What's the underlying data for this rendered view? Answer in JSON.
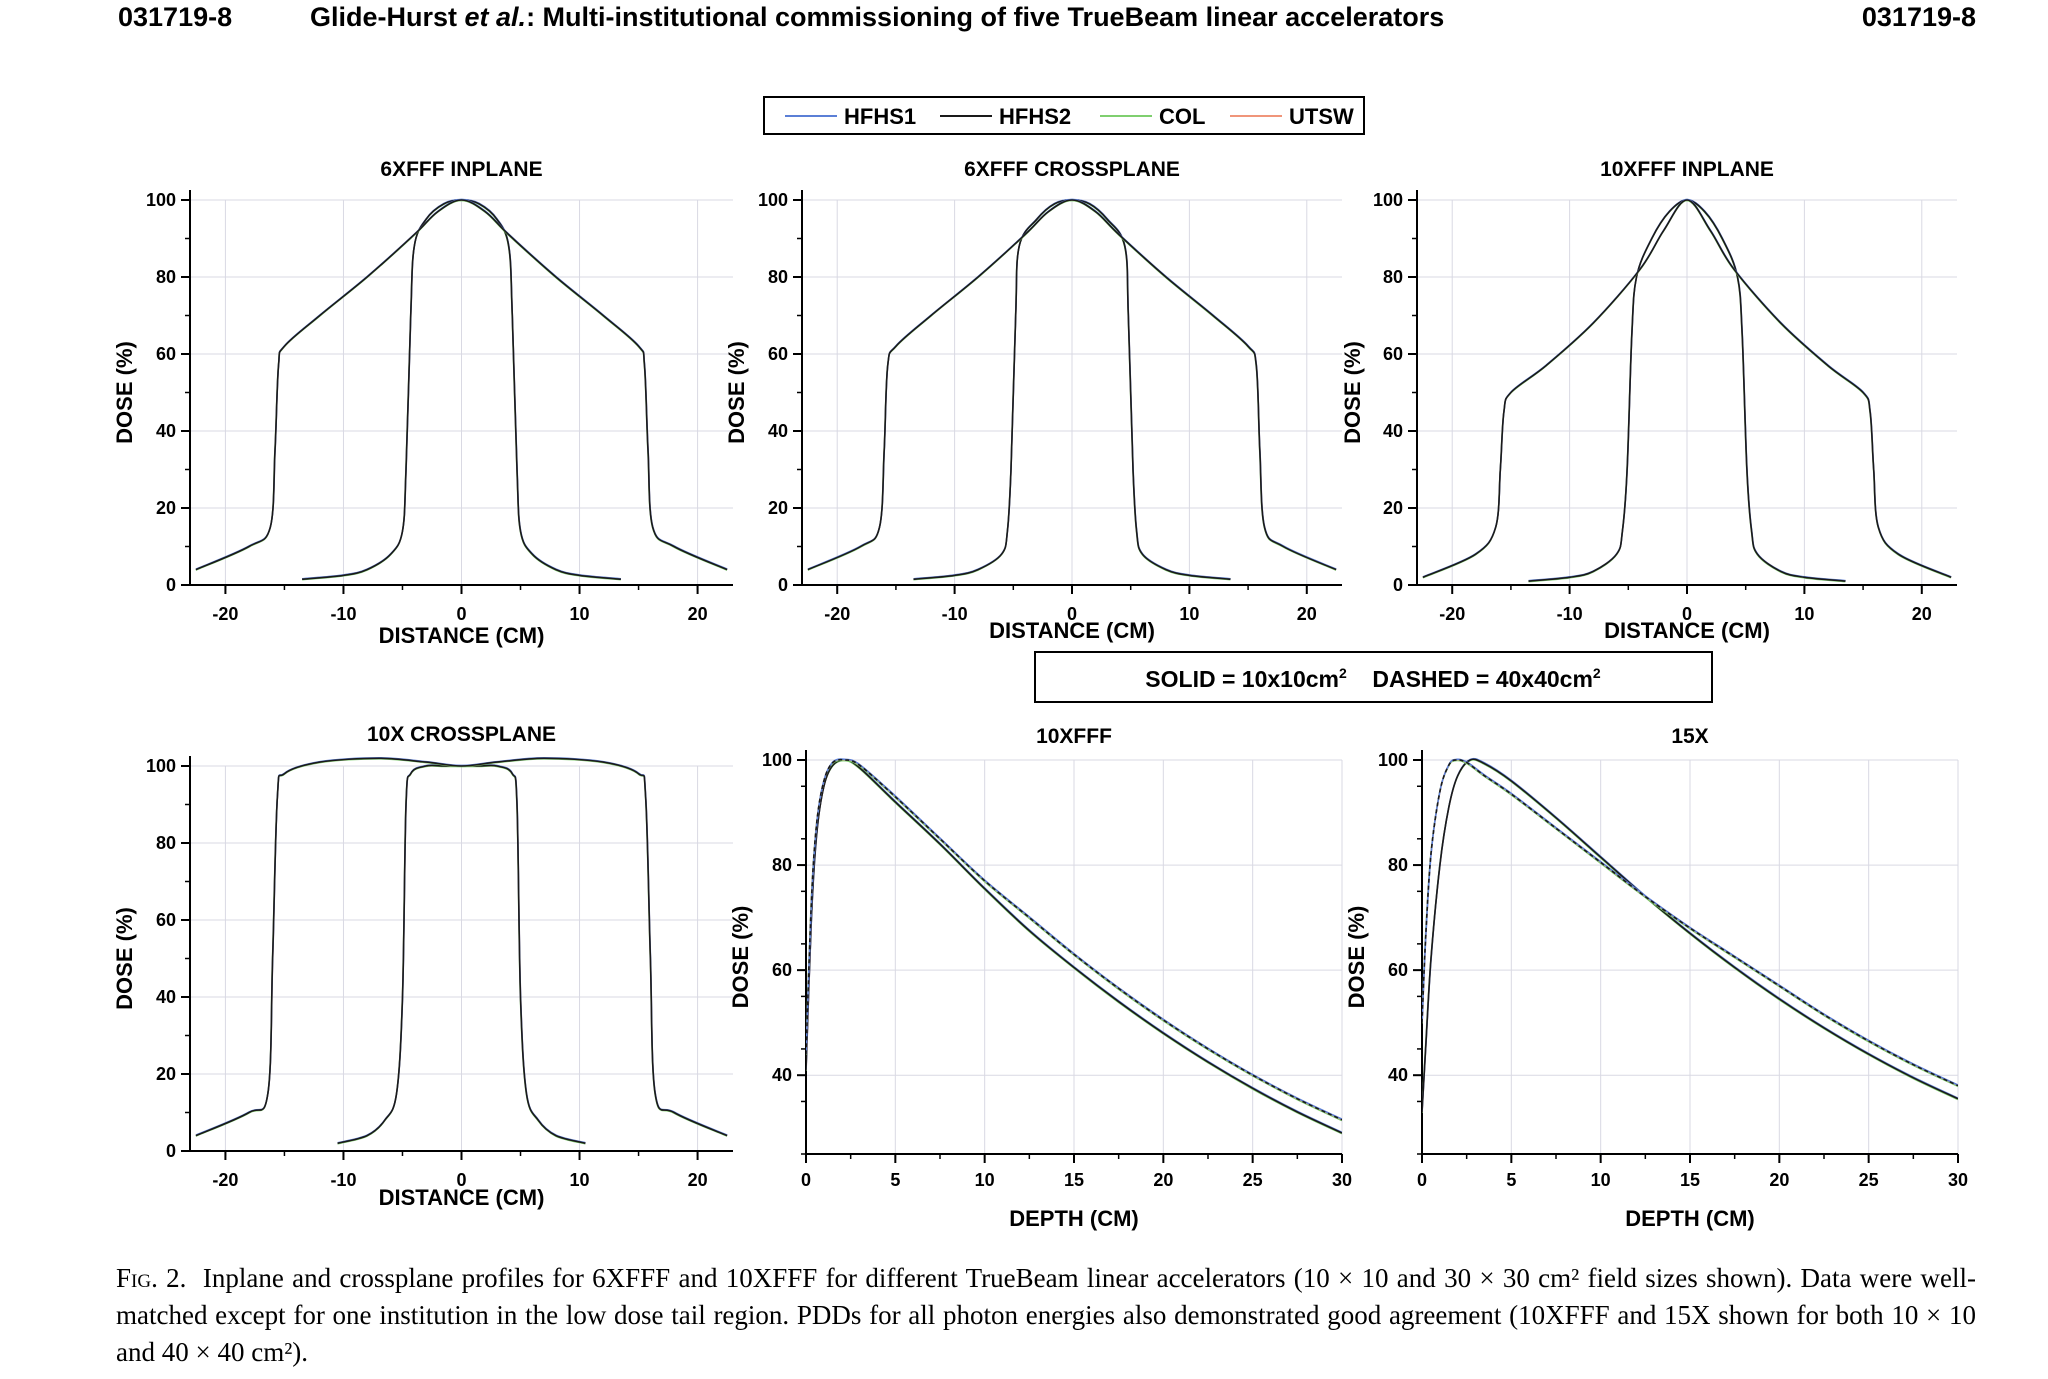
{
  "header": {
    "page_left": "031719-8",
    "title_author": "Glide-Hurst",
    "title_etal": "et al.",
    "title_rest": ": Multi-institutional commissioning of five TrueBeam linear accelerators",
    "page_right": "031719-8"
  },
  "legend": {
    "entries": [
      {
        "name": "HFHS1",
        "color": "#5b7fd6"
      },
      {
        "name": "HFHS2",
        "color": "#1a1a1a"
      },
      {
        "name": "COL",
        "color": "#7fcf6f"
      },
      {
        "name": "UTSW",
        "color": "#f0957a"
      }
    ]
  },
  "field_size_legend": {
    "solid_text": "SOLID = 10x10cm",
    "solid_sup": "2",
    "dashed_text": "DASHED = 40x40cm",
    "dashed_sup": "2"
  },
  "chart_data": [
    {
      "type": "line",
      "title": "6XFFF INPLANE",
      "xlabel": "DISTANCE (CM)",
      "ylabel": "DOSE (%)",
      "xlim": [
        -23,
        23
      ],
      "ylim": [
        0,
        100
      ],
      "xticks": [
        -20,
        -10,
        0,
        10,
        20
      ],
      "yticks": [
        0,
        20,
        40,
        60,
        80,
        100
      ],
      "series": [
        {
          "field": "10x10",
          "x": [
            -13.5,
            -10,
            -8,
            -6,
            -5,
            -4.7,
            -4.3,
            -4,
            -3,
            -1.5,
            0,
            1.5,
            3,
            4,
            4.3,
            4.7,
            5,
            6,
            8,
            10,
            13.5
          ],
          "y": [
            1.5,
            2.5,
            4,
            8,
            14,
            30,
            70,
            88,
            95,
            99,
            100,
            99,
            95,
            88,
            70,
            30,
            14,
            8,
            4,
            2.5,
            1.5
          ]
        },
        {
          "field": "30x30",
          "x": [
            -22.5,
            -18,
            -16.2,
            -15.8,
            -15.5,
            -15,
            -12,
            -8,
            -4,
            -2,
            0,
            2,
            4,
            8,
            12,
            15,
            15.5,
            15.8,
            16.2,
            18,
            22.5
          ],
          "y": [
            4,
            10,
            15,
            35,
            57,
            62,
            70,
            80,
            91,
            97,
            100,
            97,
            91,
            80,
            70,
            62,
            57,
            35,
            15,
            10,
            4
          ]
        }
      ]
    },
    {
      "type": "line",
      "title": "6XFFF CROSSPLANE",
      "xlabel": "DISTANCE (CM)",
      "ylabel": "DOSE (%)",
      "xlim": [
        -23,
        23
      ],
      "ylim": [
        0,
        100
      ],
      "xticks": [
        -20,
        -10,
        0,
        10,
        20
      ],
      "yticks": [
        0,
        20,
        40,
        60,
        80,
        100
      ],
      "series": [
        {
          "field": "10x10",
          "x": [
            -13.5,
            -10,
            -8,
            -6,
            -5.5,
            -5.2,
            -4.8,
            -4.5,
            -3,
            -1.5,
            0,
            1.5,
            3,
            4.5,
            4.8,
            5.2,
            5.5,
            6,
            8,
            10,
            13.5
          ],
          "y": [
            1.5,
            2.5,
            4,
            8,
            14,
            30,
            70,
            88,
            95,
            99,
            100,
            99,
            95,
            88,
            70,
            30,
            14,
            8,
            4,
            2.5,
            1.5
          ]
        },
        {
          "field": "30x30",
          "x": [
            -22.5,
            -18,
            -16.4,
            -16,
            -15.7,
            -15,
            -12,
            -8,
            -4,
            -2,
            0,
            2,
            4,
            8,
            12,
            15,
            15.7,
            16,
            16.4,
            18,
            22.5
          ],
          "y": [
            4,
            10,
            15,
            35,
            57,
            62,
            70,
            80,
            91,
            97,
            100,
            97,
            91,
            80,
            70,
            62,
            57,
            35,
            15,
            10,
            4
          ]
        }
      ]
    },
    {
      "type": "line",
      "title": "10XFFF INPLANE",
      "xlabel": "DISTANCE (CM)",
      "ylabel": "DOSE (%)",
      "xlim": [
        -23,
        23
      ],
      "ylim": [
        0,
        100
      ],
      "xticks": [
        -20,
        -10,
        0,
        10,
        20
      ],
      "yticks": [
        0,
        20,
        40,
        60,
        80,
        100
      ],
      "series": [
        {
          "field": "10x10",
          "x": [
            -13.5,
            -10,
            -8,
            -6,
            -5.5,
            -5.1,
            -4.7,
            -4.3,
            -3,
            -1.5,
            0,
            1.5,
            3,
            4.3,
            4.7,
            5.1,
            5.5,
            6,
            8,
            10,
            13.5
          ],
          "y": [
            1,
            2,
            3.5,
            8,
            14,
            30,
            65,
            80,
            90,
            97,
            100,
            97,
            90,
            80,
            65,
            30,
            14,
            8,
            3.5,
            2,
            1
          ]
        },
        {
          "field": "30x30",
          "x": [
            -22.5,
            -18,
            -16.3,
            -15.9,
            -15.6,
            -15,
            -12,
            -8,
            -4,
            -2,
            0,
            2,
            4,
            8,
            12,
            15,
            15.6,
            15.9,
            16.3,
            18,
            22.5
          ],
          "y": [
            2,
            8,
            15,
            30,
            45,
            50,
            57,
            68,
            82,
            92,
            100,
            92,
            82,
            68,
            57,
            50,
            45,
            30,
            15,
            8,
            2
          ]
        }
      ]
    },
    {
      "type": "line",
      "title": "10X CROSSPLANE",
      "xlabel": "DISTANCE (CM)",
      "ylabel": "DOSE (%)",
      "xlim": [
        -23,
        23
      ],
      "ylim": [
        0,
        100
      ],
      "xticks": [
        -20,
        -10,
        0,
        10,
        20
      ],
      "yticks": [
        0,
        20,
        40,
        60,
        80,
        100
      ],
      "series": [
        {
          "field": "10x10",
          "x": [
            -10.5,
            -8,
            -6.5,
            -5.5,
            -5,
            -4.7,
            -4.3,
            -3,
            -1.5,
            0,
            1.5,
            3,
            4.3,
            4.7,
            5,
            5.5,
            6.5,
            8,
            10.5
          ],
          "y": [
            2,
            4,
            8,
            15,
            40,
            90,
            98,
            100,
            100,
            100,
            100,
            100,
            98,
            90,
            40,
            15,
            8,
            4,
            2
          ]
        },
        {
          "field": "30x30",
          "x": [
            -22.5,
            -18,
            -16.4,
            -16,
            -15.6,
            -15,
            -12,
            -7,
            -3,
            0,
            3,
            7,
            12,
            15,
            15.6,
            16,
            16.4,
            18,
            22.5
          ],
          "y": [
            4,
            10,
            15,
            50,
            92,
            98,
            101,
            102,
            101,
            100,
            101,
            102,
            101,
            98,
            92,
            50,
            15,
            10,
            4
          ]
        }
      ]
    },
    {
      "type": "line",
      "title": "10XFFF",
      "xlabel": "DEPTH (CM)",
      "ylabel": "DOSE (%)",
      "xlim": [
        0,
        30
      ],
      "ylim": [
        25,
        100
      ],
      "xticks": [
        0,
        5,
        10,
        15,
        20,
        25,
        30
      ],
      "yticks": [
        40,
        60,
        80,
        100
      ],
      "series": [
        {
          "field": "10x10",
          "x": [
            0,
            0.3,
            0.6,
            1,
            1.5,
            2.2,
            3,
            5,
            7.5,
            10,
            12.5,
            15,
            17.5,
            20,
            22.5,
            25,
            27.5,
            30
          ],
          "y": [
            41,
            70,
            86,
            95,
            99,
            100,
            98.5,
            92,
            84,
            75.5,
            67.5,
            60.5,
            54,
            48,
            42.5,
            37.5,
            33,
            29
          ]
        },
        {
          "field": "40x40",
          "x": [
            0,
            0.3,
            0.6,
            1,
            1.5,
            2.2,
            3,
            5,
            7.5,
            10,
            12.5,
            15,
            17.5,
            20,
            22.5,
            25,
            27.5,
            30
          ],
          "y": [
            44,
            73,
            88,
            96,
            99.5,
            100,
            99,
            93,
            85,
            77,
            70,
            63,
            56.5,
            50.5,
            45,
            40,
            35.5,
            31.5
          ]
        }
      ]
    },
    {
      "type": "line",
      "title": "15X",
      "xlabel": "DEPTH (CM)",
      "ylabel": "DOSE (%)",
      "xlim": [
        0,
        30
      ],
      "ylim": [
        25,
        100
      ],
      "xticks": [
        0,
        5,
        10,
        15,
        20,
        25,
        30
      ],
      "yticks": [
        40,
        60,
        80,
        100
      ],
      "series": [
        {
          "field": "10x10",
          "x": [
            0,
            0.2,
            0.5,
            1,
            1.5,
            2,
            2.7,
            3.5,
            5,
            7.5,
            10,
            12.5,
            15,
            17.5,
            20,
            22.5,
            25,
            27.5,
            30
          ],
          "y": [
            33,
            45,
            62,
            80,
            91,
            97,
            100,
            99.3,
            96,
            89,
            81.5,
            74,
            67,
            60.5,
            54.5,
            49,
            44,
            39.5,
            35.5
          ]
        },
        {
          "field": "40x40",
          "x": [
            0,
            0.2,
            0.5,
            1,
            1.5,
            1.9,
            2.5,
            3.5,
            5,
            7.5,
            10,
            12.5,
            15,
            17.5,
            20,
            22.5,
            25,
            27.5,
            30
          ],
          "y": [
            50,
            66,
            82,
            94,
            99,
            100,
            99.5,
            97,
            93.5,
            87,
            80.5,
            74,
            68,
            62.5,
            57,
            51.5,
            46.5,
            42,
            38
          ]
        }
      ]
    }
  ],
  "caption": {
    "fig_label": "Fig. 2.",
    "text": "Inplane and crossplane profiles for 6XFFF and 10XFFF for different TrueBeam linear accelerators (10 × 10 and 30 × 30 cm² field sizes shown). Data were well-matched except for one institution in the low dose tail region. PDDs for all photon energies also demonstrated good agreement (10XFFF and 15X shown for both 10 × 10 and 40 × 40 cm²)."
  }
}
